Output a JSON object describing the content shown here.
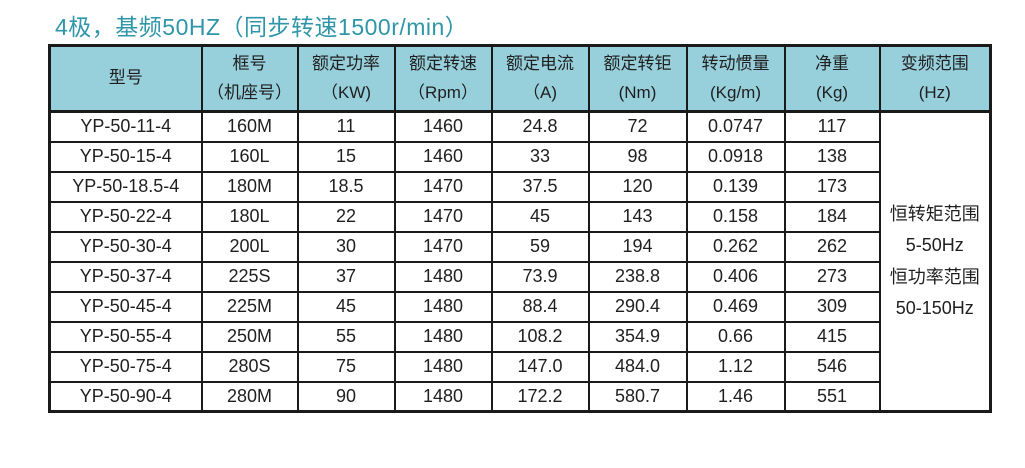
{
  "page": {
    "title": "4极，基频50HZ（同步转速1500r/min）"
  },
  "colors": {
    "title_teal": "#2E96A8",
    "header_background": "#97CFDB",
    "border": "#1A1A1A",
    "text": "#1F1F1F"
  },
  "table": {
    "headers": [
      {
        "line1": "型号",
        "line2": ""
      },
      {
        "line1": "框号",
        "line2": "（机座号）"
      },
      {
        "line1": "额定功率",
        "line2": "（KW)"
      },
      {
        "line1": "额定转速",
        "line2": "（Rpm）"
      },
      {
        "line1": "额定电流",
        "line2": "（A)"
      },
      {
        "line1": "额定转钜",
        "line2": "(Nm)"
      },
      {
        "line1": "转动惯量",
        "line2": "(Kg/m)"
      },
      {
        "line1": "净重",
        "line2": "(Kg)"
      },
      {
        "line1": "变频范围",
        "line2": "(Hz)"
      }
    ],
    "rows": [
      [
        "YP-50-11-4",
        "160M",
        "11",
        "1460",
        "24.8",
        "72",
        "0.0747",
        "117"
      ],
      [
        "YP-50-15-4",
        "160L",
        "15",
        "1460",
        "33",
        "98",
        "0.0918",
        "138"
      ],
      [
        "YP-50-18.5-4",
        "180M",
        "18.5",
        "1470",
        "37.5",
        "120",
        "0.139",
        "173"
      ],
      [
        "YP-50-22-4",
        "180L",
        "22",
        "1470",
        "45",
        "143",
        "0.158",
        "184"
      ],
      [
        "YP-50-30-4",
        "200L",
        "30",
        "1470",
        "59",
        "194",
        "0.262",
        "262"
      ],
      [
        "YP-50-37-4",
        "225S",
        "37",
        "1480",
        "73.9",
        "238.8",
        "0.406",
        "273"
      ],
      [
        "YP-50-45-4",
        "225M",
        "45",
        "1480",
        "88.4",
        "290.4",
        "0.469",
        "309"
      ],
      [
        "YP-50-55-4",
        "250M",
        "55",
        "1480",
        "108.2",
        "354.9",
        "0.66",
        "415"
      ],
      [
        "YP-50-75-4",
        "280S",
        "75",
        "1480",
        "147.0",
        "484.0",
        "1.12",
        "546"
      ],
      [
        "YP-50-90-4",
        "280M",
        "90",
        "1480",
        "172.2",
        "580.7",
        "1.46",
        "551"
      ]
    ],
    "frequency_range": [
      "恒转矩范围",
      "5-50Hz",
      "恒功率范围",
      "50-150Hz"
    ]
  }
}
